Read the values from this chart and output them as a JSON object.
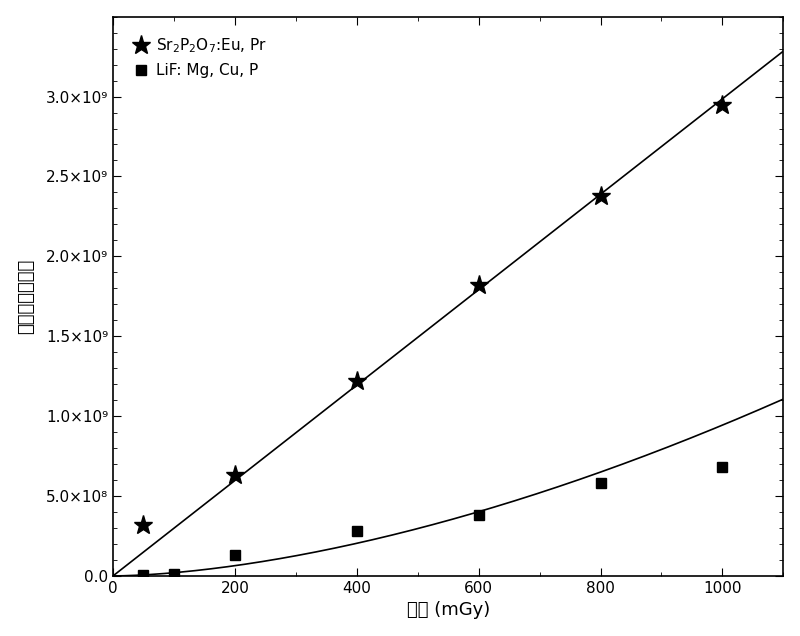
{
  "title": "",
  "xlabel": "剂量 (mGy)",
  "ylabel": "热释光相对强度",
  "xlim": [
    0,
    1100
  ],
  "ylim": [
    0,
    3500000000.0
  ],
  "yticks": [
    0,
    500000000.0,
    1000000000.0,
    1500000000.0,
    2000000000.0,
    2500000000.0,
    3000000000.0
  ],
  "ytick_labels": [
    "0.0",
    "5.0×10⁸",
    "1.0×10⁹",
    "1.5×10⁹",
    "2.0×10⁹",
    "2.5×10⁹",
    "3.0×10⁹"
  ],
  "xticks": [
    0,
    200,
    400,
    600,
    800,
    1000
  ],
  "series1_label": "Sr$_2$P$_2$O$_7$:Eu, Pr",
  "series1_x": [
    50,
    200,
    400,
    600,
    800,
    1000
  ],
  "series1_y": [
    320000000.0,
    630000000.0,
    1220000000.0,
    1820000000.0,
    2380000000.0,
    2950000000.0
  ],
  "series2_label": "LiF: Mg, Cu, P",
  "series2_x": [
    50,
    100,
    200,
    400,
    600,
    800,
    1000
  ],
  "series2_y": [
    5000000.0,
    15000000.0,
    130000000.0,
    280000000.0,
    380000000.0,
    580000000.0,
    680000000.0
  ],
  "line_color": "#000000",
  "marker1": "*",
  "marker2": "s",
  "markersize1": 12,
  "markersize2": 7,
  "background_color": "#ffffff"
}
